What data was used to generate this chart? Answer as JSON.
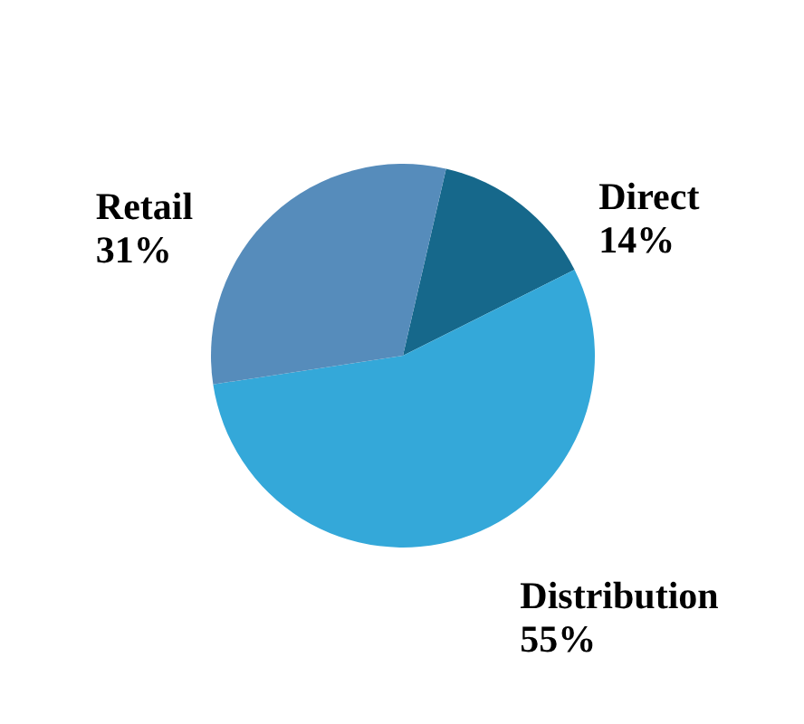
{
  "chart_data": {
    "type": "pie",
    "categories": [
      "Direct",
      "Distribution",
      "Retail"
    ],
    "values": [
      14,
      55,
      31
    ],
    "colors": [
      "#16688b",
      "#34a8d9",
      "#568cbb"
    ],
    "value_labels": [
      "14%",
      "55%",
      "31%"
    ]
  }
}
